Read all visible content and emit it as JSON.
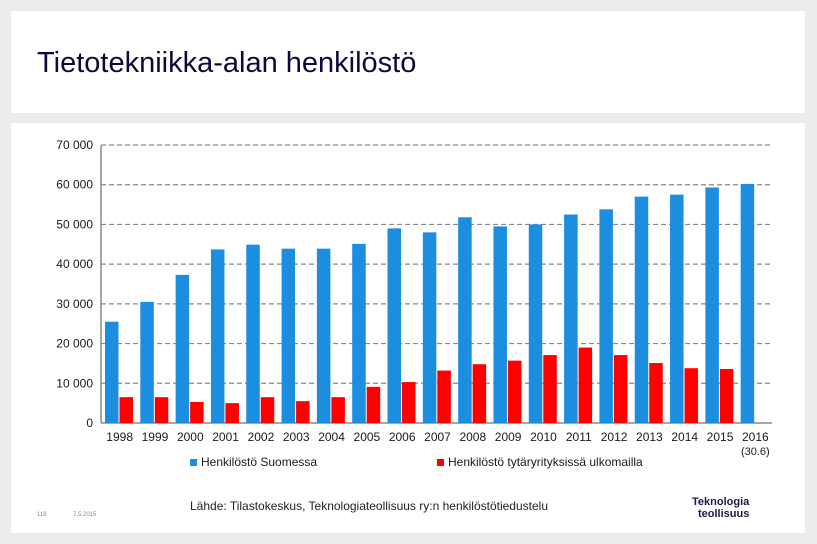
{
  "slide": {
    "title": "Tietotekniikka-alan henkilöstö",
    "source": "Lähde: Tilastokeskus, Teknologiateollisuus ry:n henkilöstötiedustelu",
    "page_number": "119",
    "date": "7.5.2015",
    "logo_line1": "Teknologia",
    "logo_line2": "teollisuus"
  },
  "colors": {
    "series1": "#1b8ee0",
    "series2": "#ff0000",
    "grid": "#8a8a8a"
  },
  "chart_data": {
    "type": "bar",
    "title": "",
    "xlabel": "",
    "ylabel": "",
    "ylim": [
      0,
      70000
    ],
    "yticks": [
      0,
      10000,
      20000,
      30000,
      40000,
      50000,
      60000,
      70000
    ],
    "ytick_labels": [
      "0",
      "10 000",
      "20 000",
      "30 000",
      "40 000",
      "50 000",
      "60 000",
      "70 000"
    ],
    "grid": true,
    "legend_position": "bottom",
    "categories": [
      "1998",
      "1999",
      "2000",
      "2001",
      "2002",
      "2003",
      "2004",
      "2005",
      "2006",
      "2007",
      "2008",
      "2009",
      "2010",
      "2011",
      "2012",
      "2013",
      "2014",
      "2015",
      "2016"
    ],
    "category_sublabel": "(30.6)",
    "series": [
      {
        "name": "Henkilöstö Suomessa",
        "values": [
          25500,
          30500,
          37300,
          43700,
          44900,
          43900,
          43900,
          45100,
          49000,
          48000,
          51800,
          49500,
          50000,
          52500,
          53800,
          57000,
          57500,
          59300,
          60200
        ]
      },
      {
        "name": "Henkilöstö tytäryrityksissä ulkomailla",
        "values": [
          6500,
          6500,
          5300,
          5000,
          6500,
          5500,
          6500,
          9100,
          10300,
          13200,
          14800,
          15700,
          17100,
          19000,
          17100,
          15100,
          13800,
          13600,
          null
        ]
      }
    ]
  }
}
